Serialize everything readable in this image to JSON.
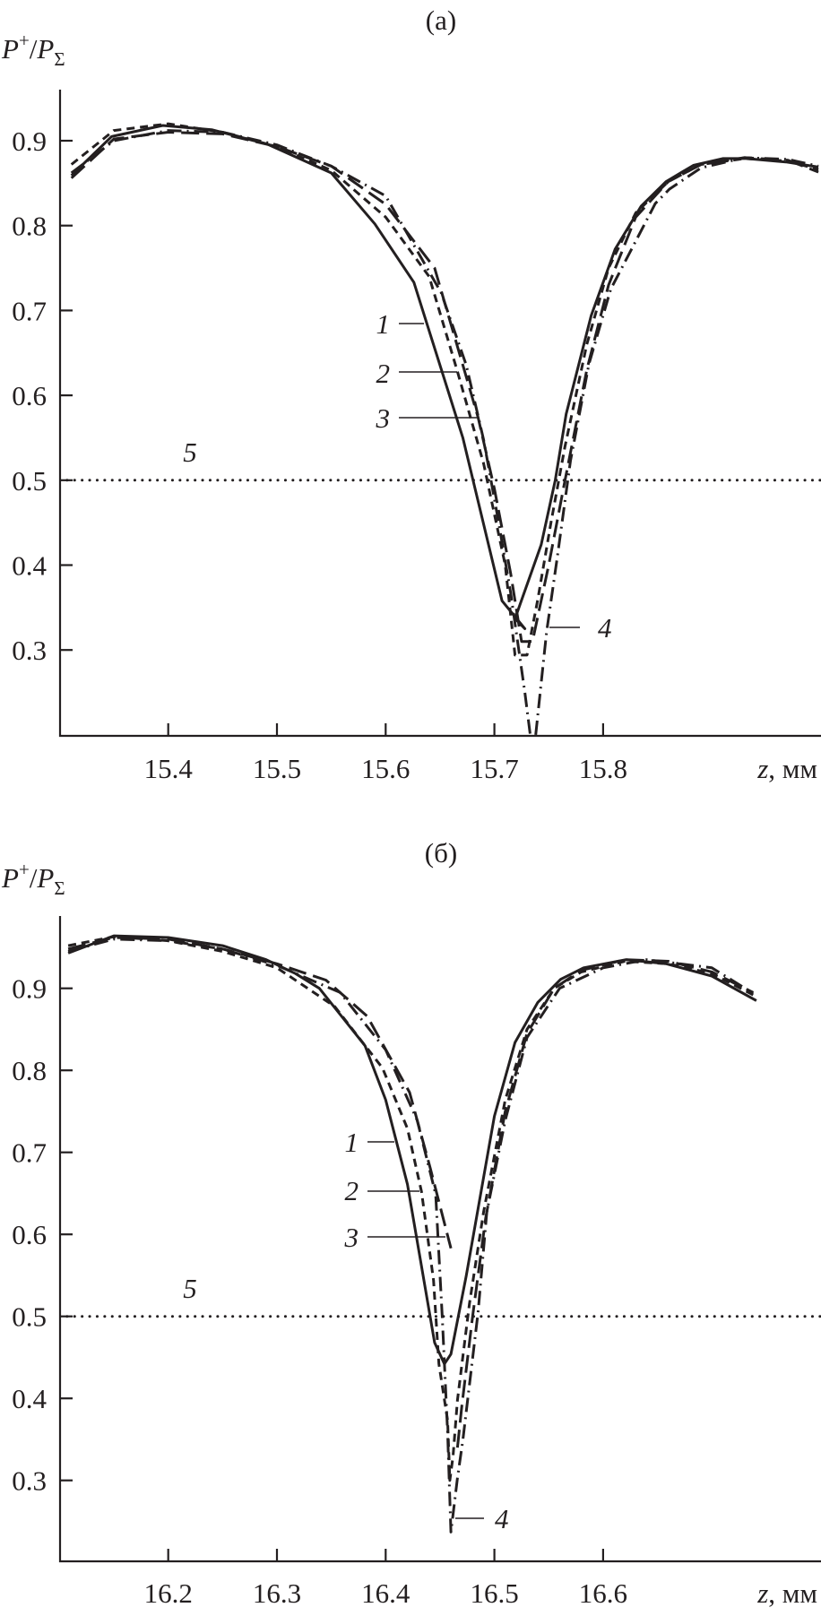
{
  "chart_data": [
    {
      "panel_label": "(a)",
      "type": "line",
      "ylabel": {
        "p1": "P",
        "sup": "+",
        "slash": "/",
        "p2": "P",
        "sub": "Σ"
      },
      "xlabel": {
        "var": "z",
        "unit": ", мм"
      },
      "xlim": [
        15.3,
        16.0
      ],
      "ylim": [
        0.2,
        0.96
      ],
      "xticks": [
        15.4,
        15.5,
        15.6,
        15.7,
        15.8
      ],
      "xtick_labels": [
        "15.4",
        "15.5",
        "15.6",
        "15.7",
        "15.8"
      ],
      "yticks": [
        0.3,
        0.4,
        0.5,
        0.6,
        0.7,
        0.8,
        0.9
      ],
      "ytick_labels": [
        "0.3",
        "0.4",
        "0.5",
        "0.6",
        "0.7",
        "0.8",
        "0.9"
      ],
      "grid": false,
      "series": [
        {
          "name": "1",
          "style": "solid",
          "points": [
            [
              15.311,
              0.859
            ],
            [
              15.348,
              0.905
            ],
            [
              15.395,
              0.918
            ],
            [
              15.44,
              0.913
            ],
            [
              15.491,
              0.896
            ],
            [
              15.55,
              0.862
            ],
            [
              15.59,
              0.802
            ],
            [
              15.626,
              0.733
            ],
            [
              15.671,
              0.55
            ],
            [
              15.707,
              0.358
            ],
            [
              15.728,
              0.325
            ],
            [
              15.719,
              0.337
            ],
            [
              15.743,
              0.424
            ],
            [
              15.756,
              0.5
            ],
            [
              15.766,
              0.578
            ],
            [
              15.789,
              0.694
            ],
            [
              15.811,
              0.772
            ],
            [
              15.835,
              0.823
            ],
            [
              15.858,
              0.852
            ],
            [
              15.883,
              0.871
            ],
            [
              15.91,
              0.879
            ],
            [
              15.932,
              0.879
            ],
            [
              15.968,
              0.875
            ],
            [
              15.998,
              0.869
            ]
          ]
        },
        {
          "name": "2",
          "style": "dashed",
          "points": [
            [
              15.311,
              0.872
            ],
            [
              15.35,
              0.912
            ],
            [
              15.4,
              0.92
            ],
            [
              15.45,
              0.91
            ],
            [
              15.5,
              0.893
            ],
            [
              15.55,
              0.865
            ],
            [
              15.6,
              0.81
            ],
            [
              15.64,
              0.74
            ],
            [
              15.666,
              0.628
            ],
            [
              15.69,
              0.52
            ],
            [
              15.71,
              0.4
            ],
            [
              15.719,
              0.294
            ],
            [
              15.73,
              0.294
            ],
            [
              15.74,
              0.36
            ],
            [
              15.752,
              0.45
            ],
            [
              15.765,
              0.54
            ],
            [
              15.785,
              0.66
            ],
            [
              15.805,
              0.75
            ],
            [
              15.83,
              0.815
            ],
            [
              15.86,
              0.852
            ],
            [
              15.89,
              0.872
            ],
            [
              15.93,
              0.879
            ],
            [
              15.97,
              0.876
            ],
            [
              15.998,
              0.866
            ]
          ]
        },
        {
          "name": "3",
          "style": "long-dash",
          "points": [
            [
              15.311,
              0.856
            ],
            [
              15.35,
              0.902
            ],
            [
              15.4,
              0.91
            ],
            [
              15.45,
              0.908
            ],
            [
              15.5,
              0.893
            ],
            [
              15.55,
              0.87
            ],
            [
              15.6,
              0.825
            ],
            [
              15.645,
              0.75
            ],
            [
              15.685,
              0.574
            ],
            [
              15.7,
              0.49
            ],
            [
              15.715,
              0.39
            ],
            [
              15.725,
              0.31
            ],
            [
              15.735,
              0.31
            ],
            [
              15.75,
              0.4
            ],
            [
              15.765,
              0.5
            ],
            [
              15.785,
              0.63
            ],
            [
              15.805,
              0.73
            ],
            [
              15.83,
              0.81
            ],
            [
              15.86,
              0.852
            ],
            [
              15.89,
              0.872
            ],
            [
              15.93,
              0.88
            ],
            [
              15.97,
              0.877
            ],
            [
              15.998,
              0.863
            ]
          ]
        },
        {
          "name": "4",
          "style": "dash-dot",
          "points": [
            [
              15.311,
              0.862
            ],
            [
              15.35,
              0.9
            ],
            [
              15.4,
              0.912
            ],
            [
              15.45,
              0.91
            ],
            [
              15.5,
              0.895
            ],
            [
              15.55,
              0.87
            ],
            [
              15.6,
              0.835
            ],
            [
              15.651,
              0.721
            ],
            [
              15.674,
              0.636
            ],
            [
              15.69,
              0.548
            ],
            [
              15.703,
              0.457
            ],
            [
              15.715,
              0.367
            ],
            [
              15.728,
              0.25
            ],
            [
              15.733,
              0.2
            ],
            null,
            [
              15.738,
              0.2
            ],
            [
              15.748,
              0.321
            ],
            [
              15.758,
              0.411
            ],
            [
              15.77,
              0.523
            ],
            [
              15.787,
              0.637
            ],
            [
              15.807,
              0.725
            ],
            [
              15.848,
              0.826
            ],
            [
              15.861,
              0.843
            ],
            [
              15.89,
              0.868
            ],
            [
              15.93,
              0.88
            ],
            [
              15.97,
              0.878
            ],
            [
              15.998,
              0.87
            ]
          ]
        },
        {
          "name": "5",
          "style": "dotted",
          "points": [
            [
              15.3,
              0.5
            ],
            [
              16.0,
              0.5
            ]
          ]
        }
      ],
      "annotations": [
        "1",
        "2",
        "3",
        "4",
        "5"
      ]
    },
    {
      "panel_label": "(б)",
      "type": "line",
      "ylabel": {
        "p1": "P",
        "sup": "+",
        "slash": "/",
        "p2": "P",
        "sub": "Σ"
      },
      "xlabel": {
        "var": "z",
        "unit": ", мм"
      },
      "xlim": [
        16.1,
        16.8
      ],
      "ylim": [
        0.2,
        0.99
      ],
      "xticks": [
        16.2,
        16.3,
        16.4,
        16.5,
        16.6
      ],
      "xtick_labels": [
        "16.2",
        "16.3",
        "16.4",
        "16.5",
        "16.6"
      ],
      "yticks": [
        0.3,
        0.4,
        0.5,
        0.6,
        0.7,
        0.8,
        0.9
      ],
      "ytick_labels": [
        "0.3",
        "0.4",
        "0.5",
        "0.6",
        "0.7",
        "0.8",
        "0.9"
      ],
      "grid": false,
      "series": [
        {
          "name": "1",
          "style": "solid",
          "points": [
            [
              16.108,
              0.943
            ],
            [
              16.15,
              0.964
            ],
            [
              16.2,
              0.962
            ],
            [
              16.25,
              0.952
            ],
            [
              16.29,
              0.935
            ],
            [
              16.317,
              0.918
            ],
            [
              16.339,
              0.9
            ],
            [
              16.381,
              0.83
            ],
            [
              16.4,
              0.764
            ],
            [
              16.42,
              0.661
            ],
            [
              16.445,
              0.468
            ],
            [
              16.454,
              0.442
            ],
            [
              16.46,
              0.454
            ],
            [
              16.474,
              0.549
            ],
            [
              16.5,
              0.744
            ],
            [
              16.519,
              0.834
            ],
            [
              16.54,
              0.883
            ],
            [
              16.561,
              0.911
            ],
            [
              16.582,
              0.925
            ],
            [
              16.621,
              0.935
            ],
            [
              16.658,
              0.93
            ],
            [
              16.7,
              0.915
            ],
            [
              16.741,
              0.885
            ]
          ]
        },
        {
          "name": "2",
          "style": "dashed",
          "points": [
            [
              16.108,
              0.952
            ],
            [
              16.15,
              0.963
            ],
            [
              16.2,
              0.958
            ],
            [
              16.25,
              0.945
            ],
            [
              16.3,
              0.925
            ],
            [
              16.353,
              0.878
            ],
            [
              16.397,
              0.803
            ],
            [
              16.42,
              0.729
            ],
            [
              16.433,
              0.652
            ],
            [
              16.444,
              0.544
            ],
            [
              16.449,
              0.442
            ],
            [
              16.457,
              0.373
            ],
            [
              16.459,
              0.3
            ],
            [
              16.462,
              0.33
            ],
            [
              16.466,
              0.398
            ],
            [
              16.477,
              0.515
            ],
            [
              16.49,
              0.627
            ],
            [
              16.51,
              0.764
            ],
            [
              16.53,
              0.85
            ],
            [
              16.555,
              0.9
            ],
            [
              16.58,
              0.92
            ],
            [
              16.62,
              0.933
            ],
            [
              16.66,
              0.93
            ],
            [
              16.7,
              0.918
            ],
            [
              16.738,
              0.892
            ]
          ]
        },
        {
          "name": "3",
          "style": "long-dash",
          "points": [
            [
              16.108,
              0.948
            ],
            [
              16.15,
              0.962
            ],
            [
              16.2,
              0.96
            ],
            [
              16.25,
              0.948
            ],
            [
              16.3,
              0.93
            ],
            [
              16.345,
              0.91
            ],
            [
              16.383,
              0.866
            ],
            [
              16.422,
              0.773
            ],
            [
              16.441,
              0.681
            ],
            [
              16.46,
              0.583
            ],
            null,
            [
              16.466,
              0.34
            ],
            [
              16.47,
              0.39
            ],
            [
              16.48,
              0.5
            ],
            [
              16.492,
              0.62
            ],
            [
              16.51,
              0.75
            ],
            [
              16.53,
              0.845
            ],
            [
              16.555,
              0.9
            ],
            [
              16.58,
              0.922
            ],
            [
              16.62,
              0.935
            ],
            [
              16.66,
              0.933
            ],
            [
              16.7,
              0.92
            ],
            [
              16.738,
              0.895
            ]
          ]
        },
        {
          "name": "4",
          "style": "dash-dot",
          "points": [
            [
              16.108,
              0.945
            ],
            [
              16.15,
              0.96
            ],
            [
              16.2,
              0.958
            ],
            [
              16.25,
              0.948
            ],
            [
              16.3,
              0.928
            ],
            [
              16.358,
              0.895
            ],
            [
              16.4,
              0.825
            ],
            [
              16.429,
              0.739
            ],
            [
              16.446,
              0.649
            ],
            [
              16.452,
              0.5
            ],
            [
              16.457,
              0.359
            ],
            [
              16.46,
              0.237
            ],
            [
              16.466,
              0.303
            ],
            [
              16.471,
              0.349
            ],
            [
              16.485,
              0.505
            ],
            [
              16.493,
              0.627
            ],
            [
              16.51,
              0.739
            ],
            [
              16.53,
              0.84
            ],
            [
              16.56,
              0.9
            ],
            [
              16.6,
              0.925
            ],
            [
              16.64,
              0.935
            ],
            [
              16.7,
              0.925
            ],
            [
              16.738,
              0.894
            ]
          ]
        },
        {
          "name": "5",
          "style": "dotted",
          "points": [
            [
              16.1,
              0.5
            ],
            [
              16.8,
              0.5
            ]
          ]
        }
      ],
      "annotations": [
        "1",
        "2",
        "3",
        "4",
        "5"
      ]
    }
  ],
  "colors": {
    "ink": "#231f20",
    "background": "#ffffff"
  }
}
